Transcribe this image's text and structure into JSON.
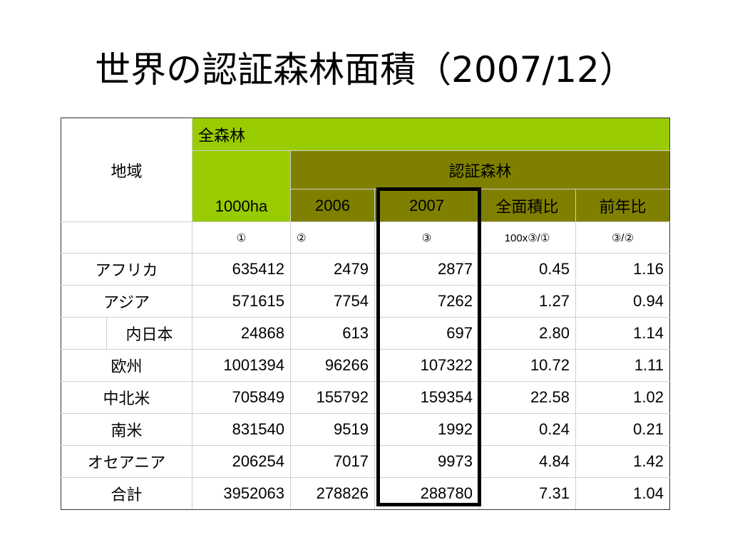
{
  "title": "世界の認証森林面積（2007/12）",
  "header": {
    "region": "地域",
    "all_forest": "全森林",
    "unit": "1000ha",
    "certified_forest": "認証森林",
    "year_2006": "2006",
    "year_2007": "2007",
    "ratio_total": "全面積比",
    "ratio_prev": "前年比"
  },
  "index_row": {
    "c1": "①",
    "c2": "②",
    "c3": "③",
    "c4": "100x③/①",
    "c5": "③/②"
  },
  "rows": [
    {
      "region": "アフリカ",
      "all": "635412",
      "y2006": "2479",
      "y2007": "2877",
      "ratio_total": "0.45",
      "ratio_prev": "1.16"
    },
    {
      "region": "アジア",
      "all": "571615",
      "y2006": "7754",
      "y2007": "7262",
      "ratio_total": "1.27",
      "ratio_prev": "0.94"
    },
    {
      "region": "内日本",
      "all": "24868",
      "y2006": "613",
      "y2007": "697",
      "ratio_total": "2.80",
      "ratio_prev": "1.14"
    },
    {
      "region": "欧州",
      "all": "1001394",
      "y2006": "96266",
      "y2007": "107322",
      "ratio_total": "10.72",
      "ratio_prev": "1.11"
    },
    {
      "region": "中北米",
      "all": "705849",
      "y2006": "155792",
      "y2007": "159354",
      "ratio_total": "22.58",
      "ratio_prev": "1.02"
    },
    {
      "region": "南米",
      "all": "831540",
      "y2006": "9519",
      "y2007": "1992",
      "ratio_total": "0.24",
      "ratio_prev": "0.21"
    },
    {
      "region": "オセアニア",
      "all": "206254",
      "y2006": "7017",
      "y2007": "9973",
      "ratio_total": "4.84",
      "ratio_prev": "1.42"
    },
    {
      "region": "合計",
      "all": "3952063",
      "y2006": "278826",
      "y2007": "288780",
      "ratio_total": "7.31",
      "ratio_prev": "1.04"
    }
  ],
  "colors": {
    "lime_header": "#99cc00",
    "olive_header": "#808000",
    "highlight_border": "#000000"
  }
}
